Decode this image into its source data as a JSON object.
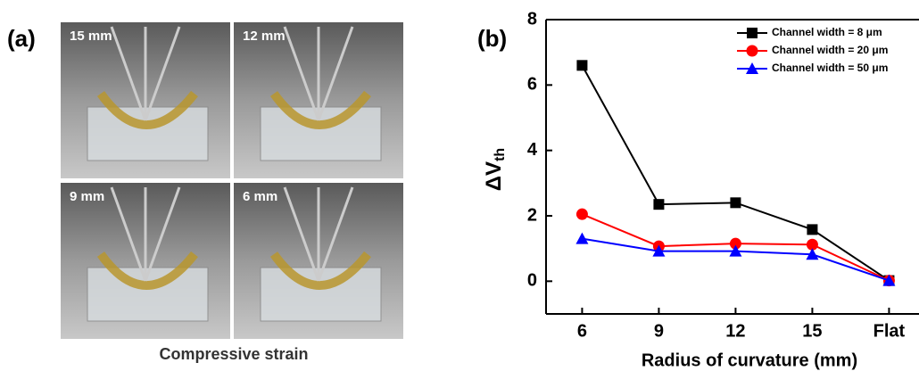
{
  "panel_a": {
    "label": "(a)",
    "photos": [
      "15 mm",
      "12 mm",
      "9 mm",
      "6 mm"
    ],
    "caption": "Compressive strain"
  },
  "chart_data": {
    "type": "line",
    "panel_label": "(b)",
    "x_label": "Radius of curvature (mm)",
    "y_label": "ΔV",
    "y_label_sub": "th",
    "categories": [
      "6",
      "9",
      "12",
      "15",
      "Flat"
    ],
    "series": [
      {
        "name": "Channel width = 8 μm",
        "color": "#000000",
        "marker": "square",
        "values": [
          6.6,
          2.35,
          2.4,
          1.58,
          0.02
        ]
      },
      {
        "name": "Channel width = 20 μm",
        "color": "#ff0000",
        "marker": "circle",
        "values": [
          2.05,
          1.07,
          1.15,
          1.12,
          0.02
        ]
      },
      {
        "name": "Channel width = 50 μm",
        "color": "#0000ff",
        "marker": "triangle",
        "values": [
          1.3,
          0.92,
          0.92,
          0.82,
          0.02
        ]
      }
    ],
    "ylim": [
      -1,
      8
    ],
    "yticks": [
      0,
      2,
      4,
      6,
      8
    ],
    "legend": "upper right"
  }
}
